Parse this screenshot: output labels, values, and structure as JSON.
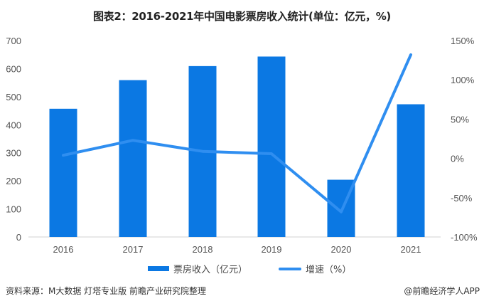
{
  "title": "图表2：2016-2021年中国电影票房收入统计(单位：亿元，%)",
  "chart_data": {
    "type": "bar",
    "title": "图表2：2016-2021年中国电影票房收入统计(单位：亿元，%)",
    "categories": [
      "2016",
      "2017",
      "2018",
      "2019",
      "2020",
      "2021"
    ],
    "series": [
      {
        "name": "票房收入（亿元）",
        "type": "bar",
        "axis": "left",
        "color": "#0b78e3",
        "values": [
          457,
          559,
          609,
          643,
          204,
          473
        ]
      },
      {
        "name": "增速（%）",
        "type": "line",
        "axis": "right",
        "color": "#2f8ef0",
        "values": [
          4,
          23,
          9,
          6,
          -68,
          132
        ]
      }
    ],
    "left_axis": {
      "ylim": [
        0,
        700
      ],
      "ticks": [
        "0",
        "100",
        "200",
        "300",
        "400",
        "500",
        "600",
        "700"
      ]
    },
    "right_axis": {
      "ylim": [
        -100,
        150
      ],
      "ticks": [
        "-100%",
        "-50%",
        "0%",
        "50%",
        "100%",
        "150%"
      ]
    },
    "grid": false,
    "legend_position": "bottom"
  },
  "legend": {
    "bar_label": "票房收入（亿元）",
    "line_label": "增速（%）"
  },
  "footer": {
    "source": "资料来源：M大数据 灯塔专业版 前瞻产业研究院整理",
    "brand": "@前瞻经济学人APP"
  }
}
